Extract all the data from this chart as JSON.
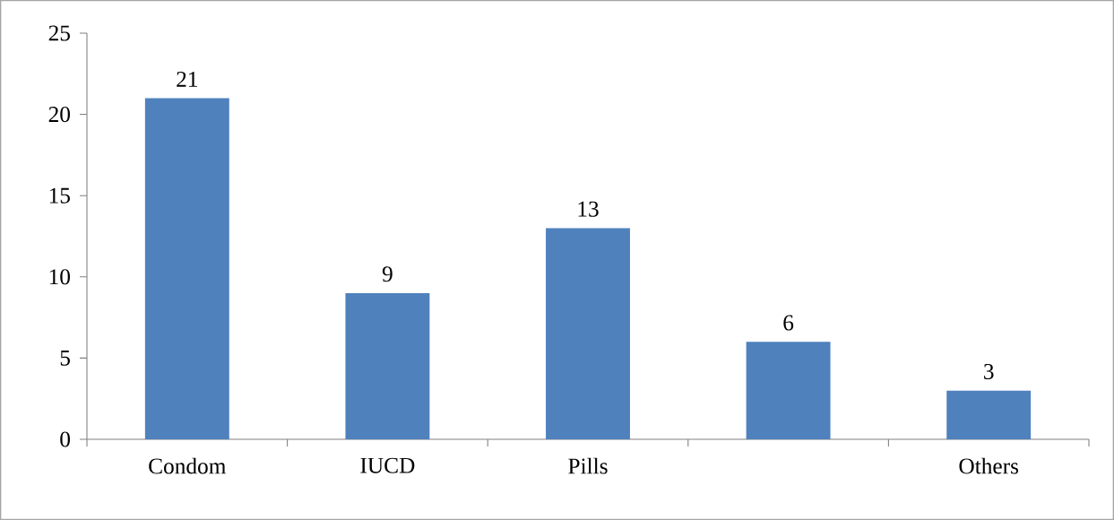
{
  "chart_data": {
    "type": "bar",
    "categories": [
      "Condom",
      "IUCD",
      "Pills",
      null,
      "Others"
    ],
    "values": [
      21,
      9,
      13,
      6,
      3
    ],
    "color": "#4f81bd",
    "ylim": [
      0,
      25
    ],
    "yticks": [
      0,
      5,
      10,
      15,
      20,
      25
    ],
    "data_labels": true
  }
}
